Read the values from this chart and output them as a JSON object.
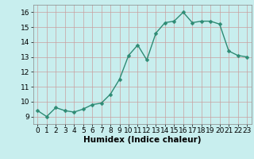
{
  "x": [
    0,
    1,
    2,
    3,
    4,
    5,
    6,
    7,
    8,
    9,
    10,
    11,
    12,
    13,
    14,
    15,
    16,
    17,
    18,
    19,
    20,
    21,
    22,
    23
  ],
  "y": [
    9.4,
    9.0,
    9.6,
    9.4,
    9.3,
    9.5,
    9.8,
    9.9,
    10.5,
    11.5,
    13.1,
    13.8,
    12.8,
    14.6,
    15.3,
    15.4,
    16.0,
    15.3,
    15.4,
    15.4,
    15.2,
    13.4,
    13.1,
    13.0
  ],
  "line_color": "#2e8b74",
  "marker_color": "#2e8b74",
  "bg_color": "#c8eeee",
  "grid_major_color": "#c0d8d8",
  "grid_minor_color": "#d8e8e8",
  "xlabel": "Humidex (Indice chaleur)",
  "ylim": [
    8.5,
    16.5
  ],
  "xlim": [
    -0.5,
    23.5
  ],
  "yticks": [
    9,
    10,
    11,
    12,
    13,
    14,
    15,
    16
  ],
  "xticks": [
    0,
    1,
    2,
    3,
    4,
    5,
    6,
    7,
    8,
    9,
    10,
    11,
    12,
    13,
    14,
    15,
    16,
    17,
    18,
    19,
    20,
    21,
    22,
    23
  ],
  "xlabel_fontsize": 7.5,
  "tick_fontsize": 6.5,
  "line_width": 1.0,
  "marker_size": 2.5
}
